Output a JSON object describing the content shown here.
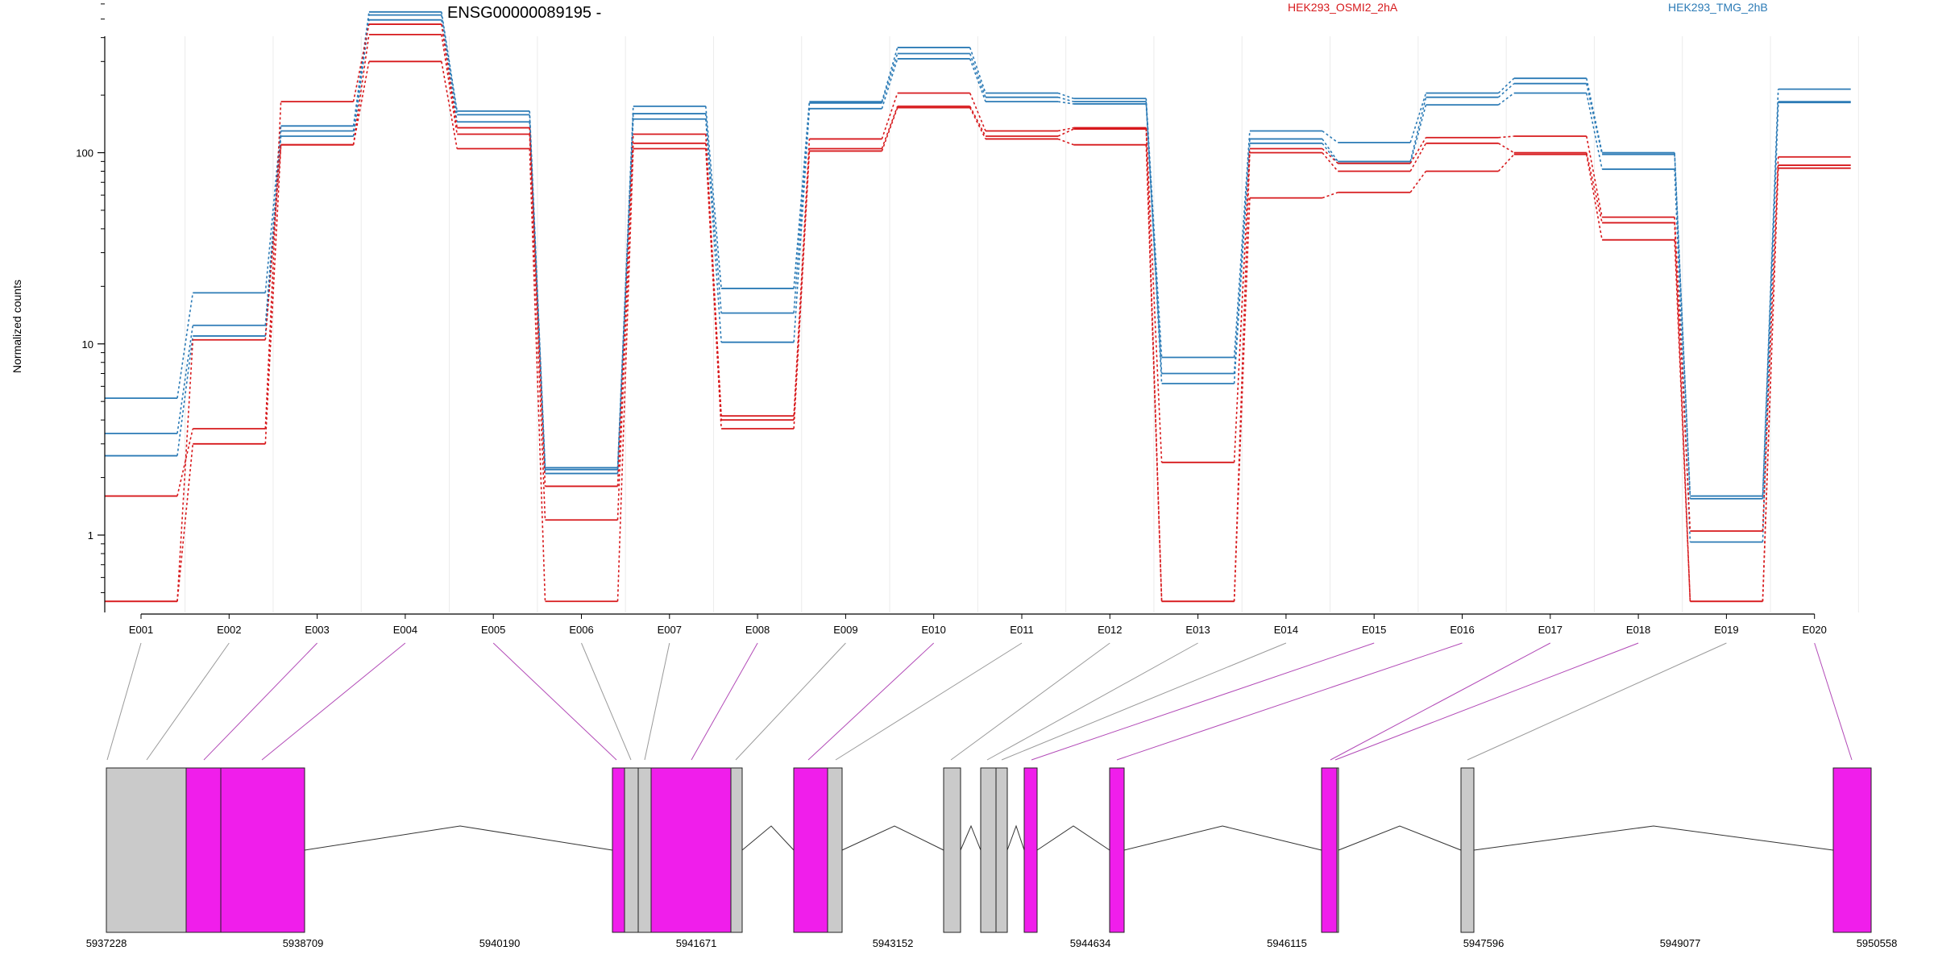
{
  "chart_data": {
    "type": "line",
    "title": "ENSG00000089195 -",
    "ylabel": "Normalized counts",
    "yscale": "log",
    "ylim": [
      0.45,
      800
    ],
    "yticks": [
      {
        "value": 1,
        "label": "1"
      },
      {
        "value": 10,
        "label": "10"
      },
      {
        "value": 100,
        "label": "100"
      }
    ],
    "grid": "vertical",
    "legend": [
      {
        "name": "HEK293_OSMI2_2hA",
        "color": "#d7191c"
      },
      {
        "name": "HEK293_TMG_2hB",
        "color": "#2c7bb6"
      }
    ],
    "categories": [
      "E001",
      "E002",
      "E003",
      "E004",
      "E005",
      "E006",
      "E007",
      "E008",
      "E009",
      "E010",
      "E011",
      "E012",
      "E013",
      "E014",
      "E015",
      "E016",
      "E017",
      "E018",
      "E019",
      "E020"
    ],
    "series": [
      {
        "group": "HEK293_TMG_2hB",
        "color": "#2c7bb6",
        "values": [
          5.2,
          18.5,
          138,
          545,
          165,
          2.25,
          175,
          19.5,
          185,
          355,
          205,
          192,
          8.5,
          130,
          113,
          205,
          245,
          100,
          1.6,
          215
        ]
      },
      {
        "group": "HEK293_TMG_2hB",
        "color": "#2c7bb6",
        "values": [
          3.4,
          12.5,
          130,
          525,
          158,
          2.2,
          160,
          14.5,
          182,
          330,
          195,
          185,
          7.0,
          118,
          90,
          195,
          230,
          98,
          1.55,
          185
        ]
      },
      {
        "group": "HEK293_TMG_2hB",
        "color": "#2c7bb6",
        "values": [
          2.6,
          11.0,
          122,
          495,
          145,
          2.1,
          150,
          10.2,
          170,
          310,
          185,
          180,
          6.2,
          112,
          88,
          178,
          205,
          82,
          0.92,
          183
        ]
      },
      {
        "group": "HEK293_OSMI2_2hA",
        "color": "#d7191c",
        "values": [
          1.6,
          3.6,
          185,
          470,
          135,
          1.8,
          125,
          4.2,
          118,
          205,
          130,
          135,
          2.4,
          105,
          88,
          120,
          122,
          46,
          1.05,
          95
        ]
      },
      {
        "group": "HEK293_OSMI2_2hA",
        "color": "#d7191c",
        "values": [
          0.45,
          3.0,
          110,
          415,
          125,
          1.2,
          112,
          4.0,
          105,
          175,
          122,
          133,
          0.45,
          100,
          80,
          112,
          100,
          43,
          0.45,
          86
        ]
      },
      {
        "group": "HEK293_OSMI2_2hA",
        "color": "#d7191c",
        "values": [
          0.45,
          10.5,
          110,
          300,
          105,
          0.45,
          105,
          3.6,
          102,
          172,
          118,
          110,
          0.45,
          58,
          62,
          80,
          98,
          35,
          0.45,
          83
        ]
      }
    ],
    "gene_model": {
      "genomic_ticks": [
        "5937228",
        "5938709",
        "5940190",
        "5941671",
        "5943152",
        "5944634",
        "5946115",
        "5947596",
        "5949077",
        "5950558"
      ],
      "colors": {
        "highlighted": "#f01eeb",
        "normal": "#cacaca"
      }
    }
  }
}
